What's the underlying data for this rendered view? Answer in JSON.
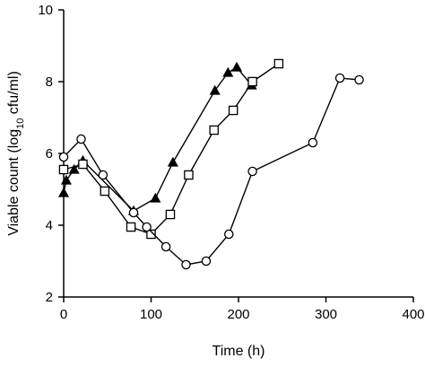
{
  "chart_data": {
    "type": "line",
    "xlabel": "Time (h)",
    "ylabel": "Viable count (log10 cfu/ml)",
    "ylabel_parts": {
      "before": "Viable count (log",
      "sub": "10",
      "after": " cfu/ml)"
    },
    "xlim": [
      0,
      400
    ],
    "ylim": [
      2,
      10
    ],
    "xticks": [
      0,
      100,
      200,
      300,
      400
    ],
    "yticks": [
      2,
      4,
      6,
      8,
      10
    ],
    "xtick_labels": [
      "0",
      "100",
      "200",
      "300",
      "400"
    ],
    "ytick_labels": [
      "2",
      "4",
      "6",
      "8",
      "10"
    ],
    "grid": false,
    "legend": "none",
    "series": [
      {
        "marker": "triangle-filled",
        "color": "#000000",
        "points": [
          {
            "x": 0,
            "y": 4.9
          },
          {
            "x": 3,
            "y": 5.25
          },
          {
            "x": 12,
            "y": 5.55
          },
          {
            "x": 22,
            "y": 5.8
          },
          {
            "x": 80,
            "y": 4.4
          },
          {
            "x": 105,
            "y": 4.75
          },
          {
            "x": 125,
            "y": 5.75
          },
          {
            "x": 173,
            "y": 7.75
          },
          {
            "x": 188,
            "y": 8.25
          },
          {
            "x": 198,
            "y": 8.4
          },
          {
            "x": 215,
            "y": 7.9
          }
        ]
      },
      {
        "marker": "square-open",
        "color": "#000000",
        "points": [
          {
            "x": 0,
            "y": 5.55
          },
          {
            "x": 22,
            "y": 5.7
          },
          {
            "x": 47,
            "y": 4.95
          },
          {
            "x": 77,
            "y": 3.95
          },
          {
            "x": 100,
            "y": 3.75
          },
          {
            "x": 122,
            "y": 4.3
          },
          {
            "x": 143,
            "y": 5.4
          },
          {
            "x": 172,
            "y": 6.65
          },
          {
            "x": 194,
            "y": 7.2
          },
          {
            "x": 216,
            "y": 8.0
          },
          {
            "x": 246,
            "y": 8.5
          }
        ]
      },
      {
        "marker": "circle-open",
        "color": "#000000",
        "points": [
          {
            "x": 0,
            "y": 5.9
          },
          {
            "x": 20,
            "y": 6.4
          },
          {
            "x": 45,
            "y": 5.4
          },
          {
            "x": 80,
            "y": 4.35
          },
          {
            "x": 95,
            "y": 3.95
          },
          {
            "x": 117,
            "y": 3.4
          },
          {
            "x": 140,
            "y": 2.9
          },
          {
            "x": 163,
            "y": 3.0
          },
          {
            "x": 189,
            "y": 3.75
          },
          {
            "x": 216,
            "y": 5.5
          },
          {
            "x": 285,
            "y": 6.3
          },
          {
            "x": 316,
            "y": 8.1
          },
          {
            "x": 338,
            "y": 8.05
          }
        ]
      }
    ]
  }
}
